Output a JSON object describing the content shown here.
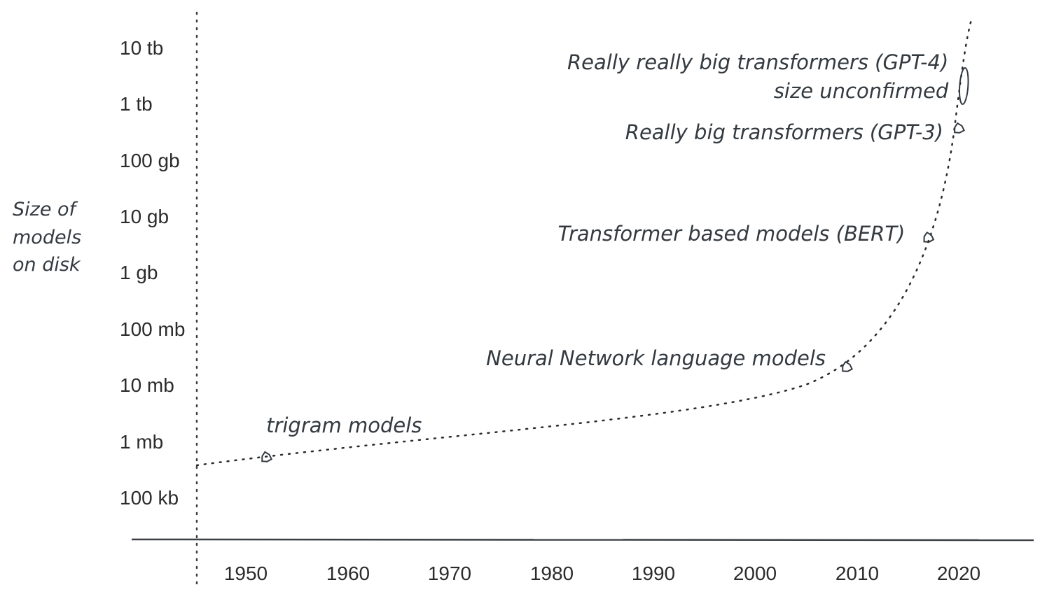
{
  "chart_data": {
    "type": "scatter",
    "title": "",
    "ylabel_lines": [
      "Size of",
      "models",
      "on disk"
    ],
    "xlabel": "",
    "x_ticks": [
      "1950",
      "1960",
      "1970",
      "1980",
      "1990",
      "2000",
      "2010",
      "2020"
    ],
    "y_ticks": [
      "10 tb",
      "1 tb",
      "100 gb",
      "10 gb",
      "1 gb",
      "100 mb",
      "10 mb",
      "1 mb",
      "100 kb"
    ],
    "y_scale": "log",
    "xlim": [
      1941.5,
      2028
    ],
    "grid": false,
    "trend_line": "dotted exponential curve",
    "points": [
      {
        "x": 1952,
        "y": "500 kb",
        "label_lines": [
          "trigram models"
        ]
      },
      {
        "x": 2009,
        "y": "20 mb",
        "label_lines": [
          "Neural Network language models"
        ]
      },
      {
        "x": 2017,
        "y": "4 gb",
        "label_lines": [
          "Transformer based models (BERT)"
        ]
      },
      {
        "x": 2020,
        "y": "350 gb",
        "label_lines": [
          "Really big transformers (GPT-3)"
        ]
      },
      {
        "x": 2020.5,
        "y": "2 tb",
        "label_lines": [
          "Really really big transformers (GPT-4)",
          "size unconfirmed"
        ]
      }
    ]
  }
}
